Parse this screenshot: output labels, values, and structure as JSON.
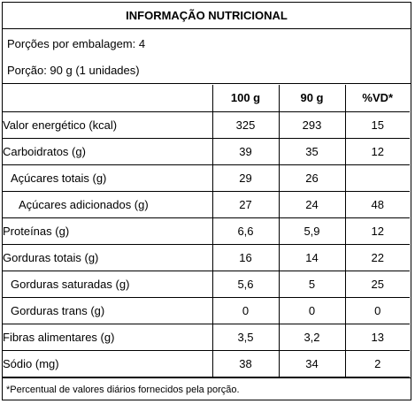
{
  "title": "INFORMAÇÃO NUTRICIONAL",
  "portions_per_package": "Porções por embalagem: 4",
  "portion": "Porção: 90 g (1 unidades)",
  "columns": [
    "",
    "100 g",
    "90 g",
    "%VD*"
  ],
  "rows": [
    {
      "label": "Valor energético (kcal)",
      "v100": "325",
      "vportion": "293",
      "vd": "15"
    },
    {
      "label": "Carboidratos (g)",
      "v100": "39",
      "vportion": "35",
      "vd": "12"
    },
    {
      "label": "Açúcares totais (g)",
      "v100": "29",
      "vportion": "26",
      "vd": ""
    },
    {
      "label": "Açúcares adicionados (g)",
      "v100": "27",
      "vportion": "24",
      "vd": "48"
    },
    {
      "label": "Proteínas (g)",
      "v100": "6,6",
      "vportion": "5,9",
      "vd": "12"
    },
    {
      "label": "Gorduras totais (g)",
      "v100": "16",
      "vportion": "14",
      "vd": "22"
    },
    {
      "label": "Gorduras saturadas (g)",
      "v100": "5,6",
      "vportion": "5",
      "vd": "25"
    },
    {
      "label": "Gorduras trans (g)",
      "v100": "0",
      "vportion": "0",
      "vd": "0"
    },
    {
      "label": "Fibras alimentares (g)",
      "v100": "3,5",
      "vportion": "3,2",
      "vd": "13"
    },
    {
      "label": "Sódio (mg)",
      "v100": "38",
      "vportion": "34",
      "vd": "2"
    }
  ],
  "footnote": "*Percentual de valores diários fornecidos pela porção."
}
